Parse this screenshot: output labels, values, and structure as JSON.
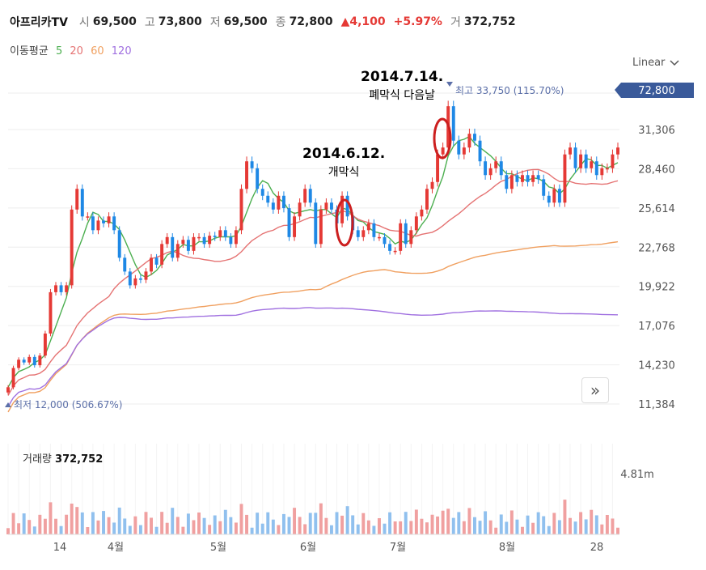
{
  "header": {
    "name": "아프리카TV",
    "open_label": "시",
    "open": "69,500",
    "high_label": "고",
    "high": "73,800",
    "low_label": "저",
    "low": "69,500",
    "close_label": "종",
    "close": "72,800",
    "change": "▲4,100",
    "change_pct": "+5.97%",
    "volume_label": "거",
    "volume": "372,752"
  },
  "ma_legend": {
    "title": "이동평균",
    "periods": [
      {
        "label": "5",
        "color": "#4caf50"
      },
      {
        "label": "20",
        "color": "#e57373"
      },
      {
        "label": "60",
        "color": "#f0a060"
      },
      {
        "label": "120",
        "color": "#a070e0"
      }
    ]
  },
  "scale_button": "Linear",
  "current_price_tag": "72,800",
  "max_marker": "최고 33,750 (115.70%)",
  "min_marker": "최저 12,000 (506.67%)",
  "annotations": [
    {
      "date": "2014.6.12.",
      "text": "개막식"
    },
    {
      "date": "2014.7.14.",
      "text": "폐막식 다음날"
    }
  ],
  "volume_panel": {
    "label": "거래량",
    "value": "372,752",
    "axis_tick": "4.81m"
  },
  "colors": {
    "up": "#e53935",
    "down": "#1e88e5",
    "ma5": "#4caf50",
    "ma20": "#e57373",
    "ma60": "#f0a060",
    "ma120": "#a070e0",
    "highlight": "#cc1f1f"
  },
  "chart_data": {
    "type": "candlestick",
    "y_axis": {
      "ticks": [
        11384,
        14230,
        17076,
        19922,
        22768,
        25614,
        28460,
        31306
      ],
      "range": [
        10500,
        34500
      ]
    },
    "x_axis": {
      "ticks": [
        "14",
        "4월",
        "5월",
        "6월",
        "7월",
        "8월",
        "28"
      ]
    },
    "current_price": 72800,
    "high": 33750,
    "low": 12000,
    "close": [
      12600,
      14000,
      14600,
      14400,
      14800,
      14200,
      14900,
      16500,
      19500,
      20000,
      19500,
      20000,
      25500,
      27000,
      25000,
      25000,
      24000,
      24700,
      24500,
      25000,
      24000,
      22000,
      21000,
      20000,
      20500,
      20400,
      21000,
      22000,
      21500,
      23000,
      23500,
      22000,
      23000,
      23300,
      22500,
      23500,
      23500,
      23000,
      23600,
      23500,
      24000,
      23500,
      23000,
      24000,
      27000,
      29000,
      28500,
      27000,
      26500,
      26000,
      25500,
      26500,
      25600,
      23500,
      25000,
      26000,
      27000,
      26000,
      23000,
      25500,
      26000,
      25500,
      24500,
      26500,
      25000,
      24000,
      23500,
      24000,
      24500,
      23500,
      23500,
      23000,
      22500,
      22500,
      24500,
      23000,
      24000,
      25000,
      25500,
      27000,
      27500,
      29500,
      30000,
      33000,
      30500,
      29500,
      30000,
      31000,
      30500,
      29000,
      28000,
      28500,
      29000,
      28000,
      27000,
      28000,
      27500,
      28000,
      27500,
      28000,
      27700,
      26500,
      26000,
      27000,
      26000,
      29500,
      30000,
      28500,
      29500,
      28500,
      29000,
      28000,
      28500,
      28500,
      29500,
      30000
    ]
  }
}
